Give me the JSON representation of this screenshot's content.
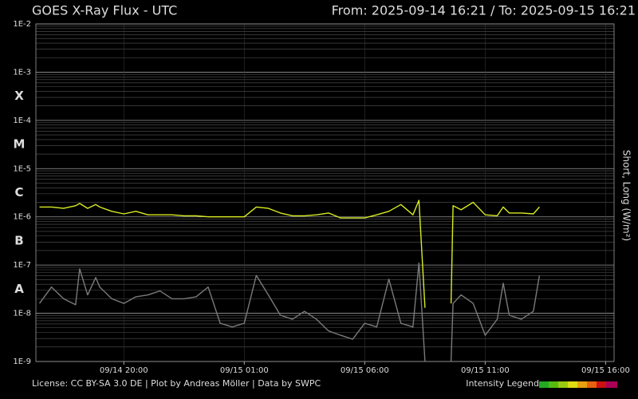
{
  "chart_data": {
    "type": "line",
    "title": "GOES X-Ray Flux - UTC",
    "range_text": "From: 2025-09-14 16:21  /  To: 2025-09-15 16:21",
    "y_label": "Short, Long (W/m²)",
    "footer": "License: CC BY-SA 3.0 DE | Plot by Andreas Möller | Data by SWPC",
    "intensity_legend": "Intensity Legend",
    "log_scale": true,
    "grid": true,
    "xlim": [
      "2025-09-14 16:21",
      "2025-09-15 16:21"
    ],
    "xticks": [
      {
        "value": "2025-09-14 20:00",
        "label": "09/14 20:00"
      },
      {
        "value": "2025-09-15 01:00",
        "label": "09/15 01:00"
      },
      {
        "value": "2025-09-15 06:00",
        "label": "09/15 06:00"
      },
      {
        "value": "2025-09-15 11:00",
        "label": "09/15 11:00"
      },
      {
        "value": "2025-09-15 16:00",
        "label": "09/15 16:00"
      }
    ],
    "ylim": [
      1e-09,
      0.01
    ],
    "yticks": [
      {
        "value": 1e-09,
        "label": "1E-9"
      },
      {
        "value": 1e-08,
        "label": "1E-8"
      },
      {
        "value": 1e-07,
        "label": "1E-7"
      },
      {
        "value": 1e-06,
        "label": "1E-6"
      },
      {
        "value": 1e-05,
        "label": "1E-5"
      },
      {
        "value": 0.0001,
        "label": "1E-4"
      },
      {
        "value": 0.001,
        "label": "1E-3"
      },
      {
        "value": 0.01,
        "label": "1E-2"
      }
    ],
    "flare_classes": [
      {
        "label": "A",
        "range": [
          1e-08,
          1e-07
        ],
        "color": "#22aa22"
      },
      {
        "label": "B",
        "range": [
          1e-07,
          1e-06
        ],
        "color": "#66bb11"
      },
      {
        "label": "C",
        "range": [
          1e-06,
          1e-05
        ],
        "color": "#cccc22"
      },
      {
        "label": "M",
        "range": [
          1e-05,
          0.0001
        ],
        "color": "#e87010"
      },
      {
        "label": "X",
        "range": [
          0.0001,
          0.001
        ],
        "color": "#cc1111"
      }
    ],
    "x": [
      "2025-09-14 16:30",
      "2025-09-14 17:00",
      "2025-09-14 17:30",
      "2025-09-14 18:00",
      "2025-09-14 18:10",
      "2025-09-14 18:30",
      "2025-09-14 18:50",
      "2025-09-14 19:00",
      "2025-09-14 19:30",
      "2025-09-14 20:00",
      "2025-09-14 20:30",
      "2025-09-14 21:00",
      "2025-09-14 21:30",
      "2025-09-14 22:00",
      "2025-09-14 22:30",
      "2025-09-14 23:00",
      "2025-09-14 23:30",
      "2025-09-15 00:00",
      "2025-09-15 00:30",
      "2025-09-15 01:00",
      "2025-09-15 01:30",
      "2025-09-15 02:00",
      "2025-09-15 02:30",
      "2025-09-15 03:00",
      "2025-09-15 03:30",
      "2025-09-15 04:00",
      "2025-09-15 04:30",
      "2025-09-15 05:00",
      "2025-09-15 05:30",
      "2025-09-15 06:00",
      "2025-09-15 06:30",
      "2025-09-15 07:00",
      "2025-09-15 07:30",
      "2025-09-15 08:00",
      "2025-09-15 08:15",
      "2025-09-15 08:30",
      "2025-09-15 09:00",
      "2025-09-15 09:35",
      "2025-09-15 09:40",
      "2025-09-15 10:00",
      "2025-09-15 10:30",
      "2025-09-15 11:00",
      "2025-09-15 11:30",
      "2025-09-15 11:45",
      "2025-09-15 12:00",
      "2025-09-15 12:30",
      "2025-09-15 13:00",
      "2025-09-15 13:15"
    ],
    "series": [
      {
        "color": "#d8ec22",
        "values": [
          1.6e-06,
          1.6e-06,
          1.5e-06,
          1.7e-06,
          1.9e-06,
          1.5e-06,
          1.8e-06,
          1.6e-06,
          1.3e-06,
          1.15e-06,
          1.3e-06,
          1.1e-06,
          1.1e-06,
          1.1e-06,
          1.05e-06,
          1.05e-06,
          1e-06,
          1e-06,
          1e-06,
          1e-06,
          1.6e-06,
          1.5e-06,
          1.2e-06,
          1.05e-06,
          1.05e-06,
          1.1e-06,
          1.2e-06,
          9.5e-07,
          9.5e-07,
          9.5e-07,
          1.1e-06,
          1.3e-06,
          1.8e-06,
          1.1e-06,
          2.2e-06,
          1.3e-08,
          null,
          1.6e-08,
          1.7e-06,
          1.4e-06,
          2e-06,
          1.1e-06,
          1.05e-06,
          1.6e-06,
          1.2e-06,
          1.2e-06,
          1.15e-06,
          1.6e-06
        ]
      },
      {
        "color": "#7a7a7a",
        "values": [
          1.6e-08,
          3.5e-08,
          2e-08,
          1.5e-08,
          8.3e-08,
          2.4e-08,
          5.5e-08,
          3.5e-08,
          2e-08,
          1.6e-08,
          2.2e-08,
          2.4e-08,
          2.9e-08,
          2e-08,
          2e-08,
          2.2e-08,
          3.5e-08,
          6.2e-09,
          5.2e-09,
          6.2e-09,
          6.1e-08,
          2.4e-08,
          9.1e-09,
          7.5e-09,
          1.1e-08,
          7.5e-09,
          4.3e-09,
          3.5e-09,
          2.9e-09,
          6.2e-09,
          5.2e-09,
          5.1e-08,
          6.2e-09,
          5.2e-09,
          1.1e-07,
          1e-09,
          null,
          1e-09,
          1.6e-08,
          2.4e-08,
          1.6e-08,
          3.5e-09,
          7.5e-09,
          4.2e-08,
          9.1e-09,
          7.5e-09,
          1.1e-08,
          6.1e-08
        ]
      }
    ]
  }
}
